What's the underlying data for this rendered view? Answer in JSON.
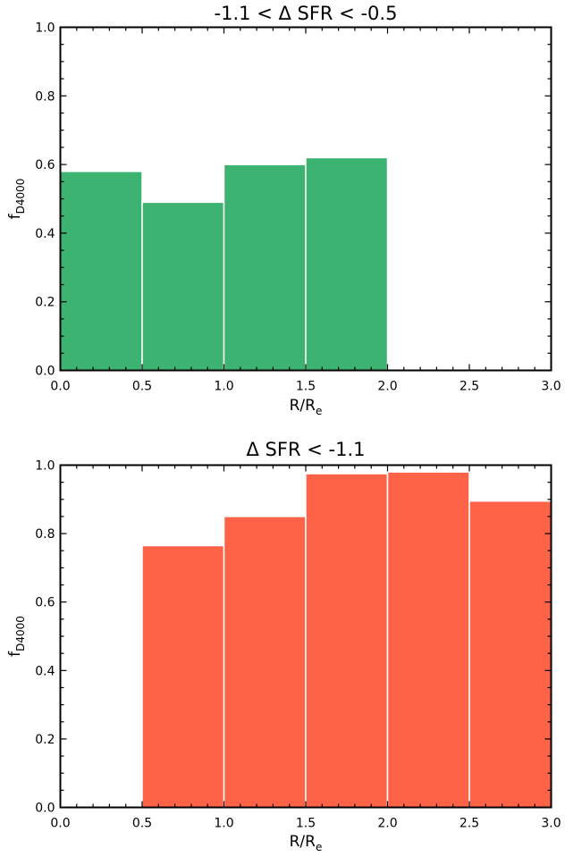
{
  "chart_data": [
    {
      "type": "bar",
      "title": "-1.1 < Δ SFR < -0.5",
      "xlabel": "R/R",
      "xlabel_sub": "e",
      "ylabel": "f",
      "ylabel_sub": "D4000",
      "xlim": [
        0.0,
        3.0
      ],
      "ylim": [
        0.0,
        1.0
      ],
      "xticks": [
        "0.0",
        "0.5",
        "1.0",
        "1.5",
        "2.0",
        "2.5",
        "3.0"
      ],
      "yticks": [
        "0.0",
        "0.2",
        "0.4",
        "0.6",
        "0.8",
        "1.0"
      ],
      "color": "#3cb371",
      "bins": [
        {
          "x0": 0.0,
          "x1": 0.5,
          "value": 0.58
        },
        {
          "x0": 0.5,
          "x1": 1.0,
          "value": 0.49
        },
        {
          "x0": 1.0,
          "x1": 1.5,
          "value": 0.6
        },
        {
          "x0": 1.5,
          "x1": 2.0,
          "value": 0.62
        }
      ]
    },
    {
      "type": "bar",
      "title": "Δ SFR < -1.1",
      "xlabel": "R/R",
      "xlabel_sub": "e",
      "ylabel": "f",
      "ylabel_sub": "D4000",
      "xlim": [
        0.0,
        3.0
      ],
      "ylim": [
        0.0,
        1.0
      ],
      "xticks": [
        "0.0",
        "0.5",
        "1.0",
        "1.5",
        "2.0",
        "2.5",
        "3.0"
      ],
      "yticks": [
        "0.0",
        "0.2",
        "0.4",
        "0.6",
        "0.8",
        "1.0"
      ],
      "color": "#ff6347",
      "bins": [
        {
          "x0": 0.5,
          "x1": 1.0,
          "value": 0.765
        },
        {
          "x0": 1.0,
          "x1": 1.5,
          "value": 0.85
        },
        {
          "x0": 1.5,
          "x1": 2.0,
          "value": 0.975
        },
        {
          "x0": 2.0,
          "x1": 2.5,
          "value": 0.98
        },
        {
          "x0": 2.5,
          "x1": 3.0,
          "value": 0.895
        }
      ]
    }
  ]
}
